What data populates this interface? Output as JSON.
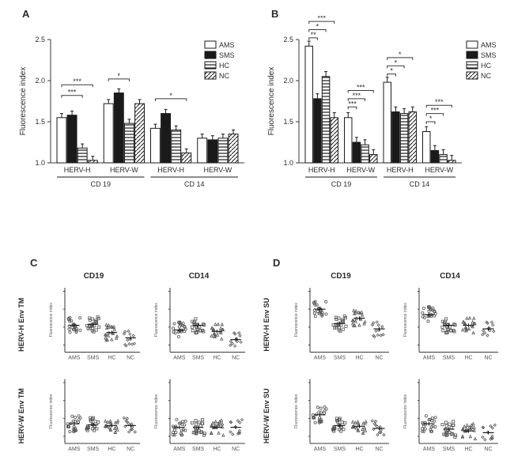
{
  "labels": {
    "A": "A",
    "B": "B",
    "C": "C",
    "D": "D",
    "ylabel": "Fluorescence index",
    "CD19": "CD 19",
    "CD14": "CD 14",
    "CD19s": "CD19",
    "CD14s": "CD14",
    "HERVH": "HERV-H",
    "HERVW": "HERV-W",
    "legend": [
      "AMS",
      "SMS",
      "HC",
      "NC"
    ],
    "row_c": [
      "HERV-H Env TM",
      "HERV-W Env TM"
    ],
    "row_d": [
      "HERV-H Env SU",
      "HERV-W Env SU"
    ],
    "scatter_y": "Fluorescence index",
    "scatter_x": [
      "AMS",
      "SMS",
      "HC",
      "NC"
    ]
  },
  "colors": {
    "bg": "#ffffff",
    "ink": "#2b2b2b",
    "ams_fill": "#ffffff",
    "sms_fill": "#1a1a1a",
    "hc_fill": "#ffffff",
    "nc_fill": "#ffffff",
    "stroke": "#1a1a1a"
  },
  "panelA": {
    "ylim": [
      1.0,
      2.5
    ],
    "yticks": [
      1.0,
      1.5,
      2.0,
      2.5
    ],
    "groups": [
      "HERV-H",
      "HERV-W",
      "HERV-H",
      "HERV-W"
    ],
    "sections": [
      "CD 19",
      "CD 14"
    ],
    "bars": [
      [
        1.55,
        1.58,
        1.18,
        1.03
      ],
      [
        1.72,
        1.85,
        1.48,
        1.72
      ],
      [
        1.42,
        1.6,
        1.4,
        1.12
      ],
      [
        1.3,
        1.28,
        1.3,
        1.35
      ]
    ],
    "err": 0.05,
    "sig": [
      {
        "g": 0,
        "a": 0,
        "b": 2,
        "y": 1.82,
        "t": "***"
      },
      {
        "g": 0,
        "a": 0,
        "b": 3,
        "y": 1.95,
        "t": "***"
      },
      {
        "g": 1,
        "a": 0,
        "b": 2,
        "y": 2.02,
        "t": "*"
      },
      {
        "g": 2,
        "a": 0,
        "b": 3,
        "y": 1.78,
        "t": "*"
      }
    ]
  },
  "panelB": {
    "ylim": [
      1.0,
      2.5
    ],
    "yticks": [
      1.0,
      1.5,
      2.0,
      2.5
    ],
    "groups": [
      "HERV-H",
      "HERV-W",
      "HERV-H",
      "HERV-W"
    ],
    "sections": [
      "CD 19",
      "CD 14"
    ],
    "bars": [
      [
        2.42,
        1.78,
        2.05,
        1.55
      ],
      [
        1.55,
        1.25,
        1.22,
        1.1
      ],
      [
        1.98,
        1.62,
        1.6,
        1.62
      ],
      [
        1.38,
        1.15,
        1.1,
        1.03
      ]
    ],
    "err": 0.06,
    "sig": [
      {
        "g": 0,
        "a": 0,
        "b": 1,
        "y": 2.52,
        "t": "**"
      },
      {
        "g": 0,
        "a": 0,
        "b": 2,
        "y": 2.62,
        "t": "*"
      },
      {
        "g": 0,
        "a": 0,
        "b": 3,
        "y": 2.72,
        "t": "***"
      },
      {
        "g": 1,
        "a": 0,
        "b": 1,
        "y": 1.68,
        "t": "***"
      },
      {
        "g": 1,
        "a": 0,
        "b": 2,
        "y": 1.78,
        "t": "***"
      },
      {
        "g": 1,
        "a": 0,
        "b": 3,
        "y": 1.88,
        "t": "***"
      },
      {
        "g": 2,
        "a": 0,
        "b": 1,
        "y": 2.08,
        "t": "*"
      },
      {
        "g": 2,
        "a": 0,
        "b": 2,
        "y": 2.18,
        "t": "*"
      },
      {
        "g": 2,
        "a": 0,
        "b": 3,
        "y": 2.28,
        "t": "*"
      },
      {
        "g": 3,
        "a": 0,
        "b": 1,
        "y": 1.5,
        "t": "*"
      },
      {
        "g": 3,
        "a": 0,
        "b": 2,
        "y": 1.6,
        "t": "***"
      },
      {
        "g": 3,
        "a": 0,
        "b": 3,
        "y": 1.7,
        "t": "***"
      }
    ]
  },
  "scatter": {
    "n_pts": 20,
    "markers": [
      "circle",
      "square",
      "triangle",
      "diamond"
    ],
    "means": {
      "C": [
        [
          [
            1.55,
            1.58,
            1.35,
            1.2
          ],
          [
            1.42,
            1.55,
            1.38,
            1.15
          ]
        ],
        [
          [
            1.35,
            1.32,
            1.3,
            1.3
          ],
          [
            1.25,
            1.25,
            1.25,
            1.25
          ]
        ]
      ],
      "D": [
        [
          [
            2.0,
            1.6,
            1.75,
            1.45
          ],
          [
            1.85,
            1.55,
            1.55,
            1.45
          ]
        ],
        [
          [
            1.6,
            1.3,
            1.28,
            1.22
          ],
          [
            1.35,
            1.2,
            1.15,
            1.1
          ]
        ]
      ]
    },
    "spread": 0.22
  }
}
